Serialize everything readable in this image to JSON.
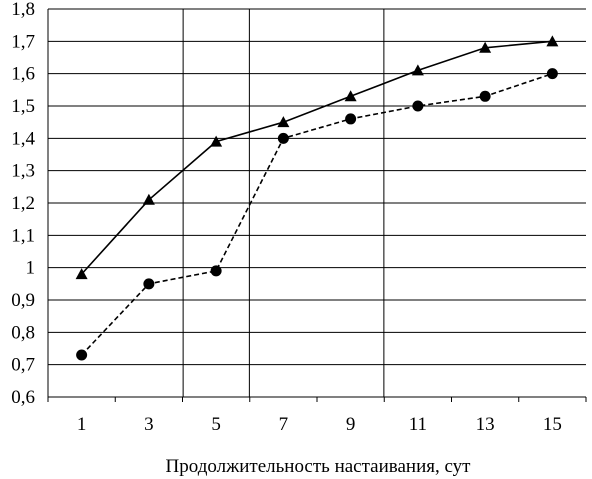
{
  "chart_data": {
    "type": "line",
    "title": "",
    "xlabel": "Продолжительность настаивания, сут",
    "ylabel": "",
    "categories": [
      "1",
      "3",
      "5",
      "7",
      "9",
      "11",
      "13",
      "15"
    ],
    "x": [
      1,
      3,
      5,
      7,
      9,
      11,
      13,
      15
    ],
    "ylim": [
      0.6,
      1.8
    ],
    "yticks": [
      0.6,
      0.7,
      0.8,
      0.9,
      1.0,
      1.1,
      1.2,
      1.3,
      1.4,
      1.5,
      1.6,
      1.7,
      1.8
    ],
    "ytick_labels": [
      "0,6",
      "0,7",
      "0,8",
      "0,9",
      "1",
      "1,1",
      "1,2",
      "1,3",
      "1,4",
      "1,5",
      "1,6",
      "1,7",
      "1,8"
    ],
    "grid": "horizontal-major and vertical at 5, 7, 11",
    "series": [
      {
        "marker": "triangle",
        "line_style": "solid",
        "color": "#000000",
        "values": [
          0.98,
          1.21,
          1.39,
          1.45,
          1.53,
          1.61,
          1.68,
          1.7
        ]
      },
      {
        "marker": "circle",
        "line_style": "dashed",
        "color": "#000000",
        "values": [
          0.73,
          0.95,
          0.99,
          1.4,
          1.46,
          1.5,
          1.53,
          1.6
        ]
      }
    ]
  }
}
